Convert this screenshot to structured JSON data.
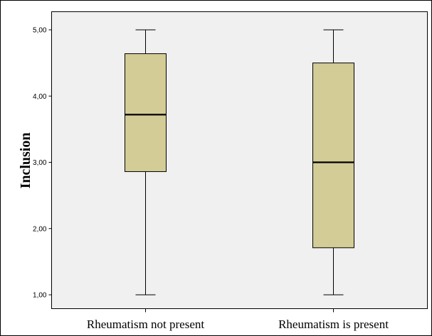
{
  "chart_data": {
    "type": "boxplot",
    "ylabel": "Inclusion",
    "xlabel": "",
    "ylim": [
      0.75,
      5.2
    ],
    "yticks": [
      1,
      2,
      3,
      4,
      5
    ],
    "ytick_labels": [
      "1,00",
      "2,00",
      "3,00",
      "4,00",
      "5,00"
    ],
    "categories": [
      "Rheumatism not present",
      "Rheumatism is present"
    ],
    "boxes": [
      {
        "category": "Rheumatism not present",
        "min": 1.0,
        "q1": 2.86,
        "median": 3.72,
        "q3": 4.64,
        "max": 5.0
      },
      {
        "category": "Rheumatism is present",
        "min": 1.0,
        "q1": 1.71,
        "median": 3.0,
        "q3": 4.5,
        "max": 5.0
      }
    ],
    "colors": {
      "box_fill": "#d3cc96",
      "plot_background": "#f0f0f0"
    },
    "grid": false
  }
}
